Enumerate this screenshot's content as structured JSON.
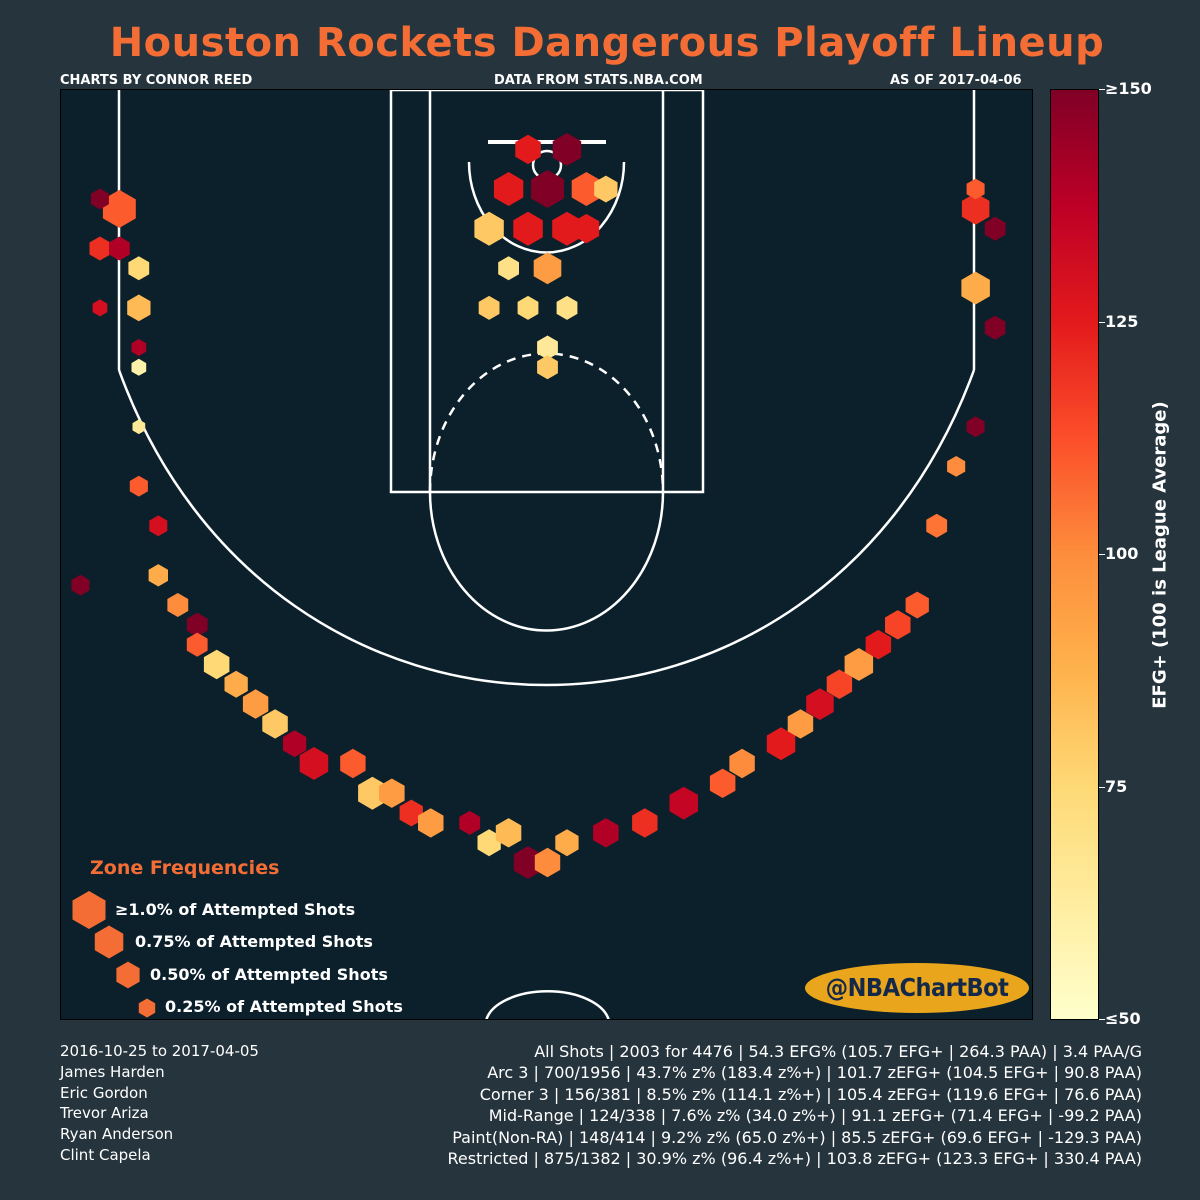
{
  "header": {
    "title": "Houston Rockets Dangerous Playoff Lineup",
    "credit": "CHARTS BY CONNOR REED",
    "source": "DATA FROM STATS.NBA.COM",
    "as_of": "AS OF 2017-04-06"
  },
  "legend": {
    "title": "Zone Frequencies",
    "items": [
      {
        "label": "≥1.0% of Attempted Shots",
        "pct": 1.0
      },
      {
        "label": "0.75% of Attempted Shots",
        "pct": 0.75
      },
      {
        "label": "0.50% of Attempted Shots",
        "pct": 0.5
      },
      {
        "label": "0.25% of Attempted Shots",
        "pct": 0.25
      }
    ],
    "color": "#f46d35"
  },
  "badge": "@NBAChartBot",
  "colorbar": {
    "label": "EFG+ (100 is League Average)",
    "ticks": [
      {
        "label": "≥150",
        "value": 150
      },
      {
        "label": "125",
        "value": 125
      },
      {
        "label": "100",
        "value": 100
      },
      {
        "label": "75",
        "value": 75
      },
      {
        "label": "≤50",
        "value": 50
      }
    ],
    "range": [
      50,
      150
    ]
  },
  "footer": {
    "lines": [
      "2016-10-25 to 2017-04-05",
      "James Harden",
      "Eric Gordon",
      "Trevor Ariza",
      "Ryan Anderson",
      "Clint Capela"
    ],
    "stats": [
      "All Shots | 2003 for 4476 | 54.3 EFG% (105.7 EFG+ | 264.3 PAA) | 3.4 PAA/G",
      "Arc 3 | 700/1956 | 43.7% z% (183.4 z%+) | 101.7 zEFG+ (104.5 EFG+ | 90.8 PAA)",
      "Corner 3 | 156/381 | 8.5% z% (114.1 z%+) | 105.4 zEFG+ (119.6 EFG+ | 76.6 PAA)",
      "Mid-Range | 124/338 | 7.6% z% (34.0 z%+) | 91.1 zEFG+ (71.4 EFG+ | -99.2 PAA)",
      "Paint(Non-RA) | 148/414 | 9.2% z% (65.0 z%+) | 85.5 zEFG+ (69.6 EFG+ | -129.3 PAA)",
      "Restricted | 875/1382 | 30.9% z% (96.4 z%+) | 103.8 zEFG+ (123.3 EFG+ | 330.4 PAA)"
    ]
  },
  "chart_data": {
    "type": "hexbin",
    "x_unit": "ft from basket",
    "y_unit": "ft from baseline",
    "xlim": [
      -25,
      25
    ],
    "ylim": [
      0,
      47
    ],
    "color_range": [
      50,
      150
    ],
    "points": [
      {
        "x": -24,
        "y": 22,
        "freq": 0.3,
        "efg": 150
      },
      {
        "x": -23,
        "y": 39,
        "freq": 0.4,
        "efg": 120
      },
      {
        "x": -22,
        "y": 41,
        "freq": 1.0,
        "efg": 110
      },
      {
        "x": -23,
        "y": 41.5,
        "freq": 0.3,
        "efg": 150
      },
      {
        "x": -22,
        "y": 39,
        "freq": 0.4,
        "efg": 140
      },
      {
        "x": -21,
        "y": 38,
        "freq": 0.4,
        "efg": 75
      },
      {
        "x": -21,
        "y": 36,
        "freq": 0.5,
        "efg": 85
      },
      {
        "x": -23,
        "y": 36,
        "freq": 0.2,
        "efg": 130
      },
      {
        "x": -21,
        "y": 34,
        "freq": 0.2,
        "efg": 140
      },
      {
        "x": -21,
        "y": 33,
        "freq": 0.2,
        "efg": 60
      },
      {
        "x": -21,
        "y": 30,
        "freq": 0.15,
        "efg": 65
      },
      {
        "x": -21,
        "y": 27,
        "freq": 0.3,
        "efg": 110
      },
      {
        "x": -20,
        "y": 25,
        "freq": 0.3,
        "efg": 130
      },
      {
        "x": -20,
        "y": 22.5,
        "freq": 0.35,
        "efg": 90
      },
      {
        "x": -19,
        "y": 21,
        "freq": 0.4,
        "efg": 100
      },
      {
        "x": -18,
        "y": 20,
        "freq": 0.4,
        "efg": 150
      },
      {
        "x": -18,
        "y": 19,
        "freq": 0.4,
        "efg": 110
      },
      {
        "x": -17,
        "y": 18,
        "freq": 0.6,
        "efg": 75
      },
      {
        "x": -16,
        "y": 17,
        "freq": 0.5,
        "efg": 90
      },
      {
        "x": -15,
        "y": 16,
        "freq": 0.6,
        "efg": 95
      },
      {
        "x": -14,
        "y": 15,
        "freq": 0.6,
        "efg": 80
      },
      {
        "x": -13,
        "y": 14,
        "freq": 0.5,
        "efg": 140
      },
      {
        "x": -12,
        "y": 13,
        "freq": 0.75,
        "efg": 130
      },
      {
        "x": -10,
        "y": 13,
        "freq": 0.6,
        "efg": 110
      },
      {
        "x": -9,
        "y": 11.5,
        "freq": 0.75,
        "efg": 80
      },
      {
        "x": -8,
        "y": 11.5,
        "freq": 0.6,
        "efg": 95
      },
      {
        "x": -7,
        "y": 10.5,
        "freq": 0.5,
        "efg": 120
      },
      {
        "x": -6,
        "y": 10,
        "freq": 0.6,
        "efg": 95
      },
      {
        "x": -4,
        "y": 10,
        "freq": 0.4,
        "efg": 140
      },
      {
        "x": -3,
        "y": 9,
        "freq": 0.5,
        "efg": 75
      },
      {
        "x": -2,
        "y": 9.5,
        "freq": 0.6,
        "efg": 85
      },
      {
        "x": -1,
        "y": 8,
        "freq": 0.75,
        "efg": 150
      },
      {
        "x": 0,
        "y": 8,
        "freq": 0.6,
        "efg": 100
      },
      {
        "x": 1,
        "y": 9,
        "freq": 0.5,
        "efg": 90
      },
      {
        "x": 3,
        "y": 9.5,
        "freq": 0.6,
        "efg": 140
      },
      {
        "x": 5,
        "y": 10,
        "freq": 0.6,
        "efg": 120
      },
      {
        "x": 7,
        "y": 11,
        "freq": 0.75,
        "efg": 135
      },
      {
        "x": 9,
        "y": 12,
        "freq": 0.6,
        "efg": 110
      },
      {
        "x": 10,
        "y": 13,
        "freq": 0.6,
        "efg": 100
      },
      {
        "x": 12,
        "y": 14,
        "freq": 0.75,
        "efg": 125
      },
      {
        "x": 13,
        "y": 15,
        "freq": 0.6,
        "efg": 95
      },
      {
        "x": 14,
        "y": 16,
        "freq": 0.7,
        "efg": 130
      },
      {
        "x": 15,
        "y": 17,
        "freq": 0.6,
        "efg": 115
      },
      {
        "x": 16,
        "y": 18,
        "freq": 0.75,
        "efg": 95
      },
      {
        "x": 17,
        "y": 19,
        "freq": 0.6,
        "efg": 125
      },
      {
        "x": 18,
        "y": 20,
        "freq": 0.6,
        "efg": 115
      },
      {
        "x": 19,
        "y": 21,
        "freq": 0.5,
        "efg": 110
      },
      {
        "x": 20,
        "y": 25,
        "freq": 0.4,
        "efg": 105
      },
      {
        "x": 21,
        "y": 28,
        "freq": 0.3,
        "efg": 100
      },
      {
        "x": 22,
        "y": 30,
        "freq": 0.3,
        "efg": 150
      },
      {
        "x": 23,
        "y": 35,
        "freq": 0.4,
        "efg": 150
      },
      {
        "x": 22,
        "y": 37,
        "freq": 0.75,
        "efg": 90
      },
      {
        "x": 22,
        "y": 41,
        "freq": 0.7,
        "efg": 120
      },
      {
        "x": 23,
        "y": 40,
        "freq": 0.4,
        "efg": 150
      },
      {
        "x": 22,
        "y": 42,
        "freq": 0.3,
        "efg": 110
      },
      {
        "x": -1,
        "y": 44,
        "freq": 0.6,
        "efg": 125
      },
      {
        "x": 1,
        "y": 44,
        "freq": 0.75,
        "efg": 150
      },
      {
        "x": -2,
        "y": 42,
        "freq": 0.8,
        "efg": 125
      },
      {
        "x": 0,
        "y": 42,
        "freq": 1.0,
        "efg": 150
      },
      {
        "x": 2,
        "y": 42,
        "freq": 0.8,
        "efg": 110
      },
      {
        "x": 3,
        "y": 42,
        "freq": 0.5,
        "efg": 80
      },
      {
        "x": -3,
        "y": 40,
        "freq": 0.8,
        "efg": 80
      },
      {
        "x": -1,
        "y": 40,
        "freq": 0.8,
        "efg": 125
      },
      {
        "x": 1,
        "y": 40,
        "freq": 0.8,
        "efg": 125
      },
      {
        "x": 2,
        "y": 40,
        "freq": 0.6,
        "efg": 125
      },
      {
        "x": -2,
        "y": 38,
        "freq": 0.4,
        "efg": 70
      },
      {
        "x": 0,
        "y": 38,
        "freq": 0.7,
        "efg": 95
      },
      {
        "x": -3,
        "y": 36,
        "freq": 0.4,
        "efg": 80
      },
      {
        "x": -1,
        "y": 36,
        "freq": 0.4,
        "efg": 75
      },
      {
        "x": 1,
        "y": 36,
        "freq": 0.4,
        "efg": 70
      },
      {
        "x": 0,
        "y": 34,
        "freq": 0.4,
        "efg": 65
      },
      {
        "x": 0,
        "y": 33,
        "freq": 0.4,
        "efg": 80
      }
    ]
  }
}
